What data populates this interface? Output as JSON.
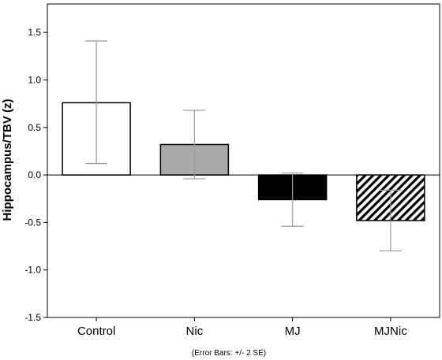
{
  "chart_data": {
    "type": "bar",
    "categories": [
      "Control",
      "Nic",
      "MJ",
      "MJNic"
    ],
    "values": [
      0.76,
      0.32,
      -0.26,
      -0.48
    ],
    "error_low": [
      0.12,
      -0.04,
      -0.54,
      -0.8
    ],
    "error_high": [
      1.41,
      0.68,
      0.02,
      -0.16
    ],
    "fills": [
      "white",
      "gray",
      "black",
      "hatched"
    ],
    "colors": {
      "white": "#ffffff",
      "gray": "#aaaaaa",
      "black": "#000000",
      "error": "#999999"
    },
    "ylabel": "Hippocampus/TBV (z)",
    "xlabel": "",
    "ylim": [
      -1.5,
      1.8
    ],
    "yticks": [
      "1.5",
      "1.0",
      "0.5",
      "0.0",
      "-0.5",
      "-1.0",
      "-1.5"
    ],
    "note": "(Error Bars: +/- 2 SE)",
    "grid": false
  }
}
